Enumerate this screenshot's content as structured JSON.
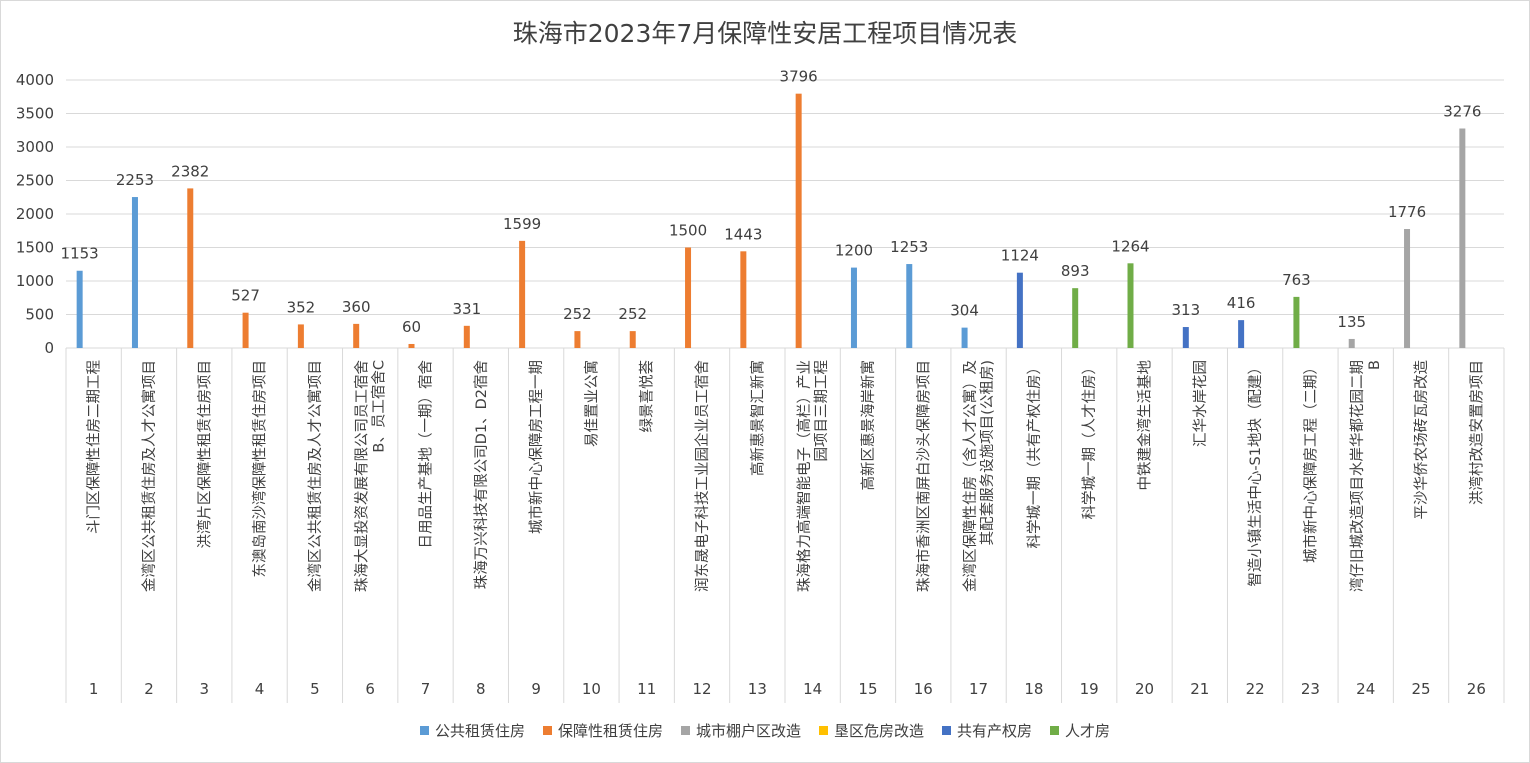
{
  "colors": {
    "public": "#5b9bd5",
    "guarantee": "#ed7d31",
    "shanty": "#a5a5a5",
    "reclaim": "#ffc000",
    "shared": "#4472c4",
    "talent": "#70ad47",
    "grid": "#d9d9d9",
    "text": "#404040"
  },
  "chart_data": {
    "type": "bar",
    "title": "珠海市2023年7月保障性安居工程项目情况表",
    "ylim": [
      0,
      4000
    ],
    "yticks": [
      0,
      500,
      1000,
      1500,
      2000,
      2500,
      3000,
      3500,
      4000
    ],
    "series": [
      {
        "name": "公共租赁住房",
        "color": "public"
      },
      {
        "name": "保障性租赁住房",
        "color": "guarantee"
      },
      {
        "name": "城市棚户区改造",
        "color": "shanty"
      },
      {
        "name": "垦区危房改造",
        "color": "reclaim"
      },
      {
        "name": "共有产权房",
        "color": "shared"
      },
      {
        "name": "人才房",
        "color": "talent"
      }
    ],
    "items": [
      {
        "no": "1",
        "name": [
          "斗门区保障性住房二期工程"
        ],
        "value": 1153,
        "series": 0
      },
      {
        "no": "2",
        "name": [
          "金湾区公共租赁住房及人才公寓项目"
        ],
        "value": 2253,
        "series": 0
      },
      {
        "no": "3",
        "name": [
          "洪湾片区保障性租赁住房项目"
        ],
        "value": 2382,
        "series": 1
      },
      {
        "no": "4",
        "name": [
          "东澳岛南沙湾保障性租赁住房项目"
        ],
        "value": 527,
        "series": 1
      },
      {
        "no": "5",
        "name": [
          "金湾区公共租赁住房及人才公寓项目"
        ],
        "value": 352,
        "series": 1
      },
      {
        "no": "6",
        "name": [
          "珠海大显投资发展有限公司员工宿舍",
          "B、员工宿舍C"
        ],
        "value": 360,
        "series": 1
      },
      {
        "no": "7",
        "name": [
          "日用品生产基地（一期）宿舍"
        ],
        "value": 60,
        "series": 1
      },
      {
        "no": "8",
        "name": [
          "珠海万兴科技有限公司D1、D2宿舍"
        ],
        "value": 331,
        "series": 1
      },
      {
        "no": "9",
        "name": [
          "城市新中心保障房工程一期"
        ],
        "value": 1599,
        "series": 1
      },
      {
        "no": "10",
        "name": [
          "易佳置业公寓"
        ],
        "value": 252,
        "series": 1
      },
      {
        "no": "11",
        "name": [
          "绿景喜悦荟"
        ],
        "value": 252,
        "series": 1
      },
      {
        "no": "12",
        "name": [
          "润东晟电子科技工业园企业员工宿舍"
        ],
        "value": 1500,
        "series": 1
      },
      {
        "no": "13",
        "name": [
          "高新惠景智汇新寓"
        ],
        "value": 1443,
        "series": 1
      },
      {
        "no": "14",
        "name": [
          "珠海格力高端智能电子（高栏）产业",
          "园项目三期工程"
        ],
        "value": 3796,
        "series": 1
      },
      {
        "no": "15",
        "name": [
          "高新区惠景海岸新寓"
        ],
        "value": 1200,
        "series": 0
      },
      {
        "no": "16",
        "name": [
          "珠海市香洲区南屏白沙头保障房项目"
        ],
        "value": 1253,
        "series": 0
      },
      {
        "no": "17",
        "name": [
          "金湾区保障性住房（含人才公寓）及",
          "其配套服务设施项目(公租房)"
        ],
        "value": 304,
        "series": 0
      },
      {
        "no": "18",
        "name": [
          "科学城一期（共有产权住房）"
        ],
        "value": 1124,
        "series": 4
      },
      {
        "no": "19",
        "name": [
          "科学城一期（人才住房）"
        ],
        "value": 893,
        "series": 5
      },
      {
        "no": "20",
        "name": [
          "中铁建金湾生活基地"
        ],
        "value": 1264,
        "series": 5
      },
      {
        "no": "21",
        "name": [
          "汇华水岸花园"
        ],
        "value": 313,
        "series": 4
      },
      {
        "no": "22",
        "name": [
          "智造小镇生活中心-S1地块（配建）"
        ],
        "value": 416,
        "series": 4
      },
      {
        "no": "23",
        "name": [
          "城市新中心保障房工程（二期）"
        ],
        "value": 763,
        "series": 5
      },
      {
        "no": "24",
        "name": [
          "湾仔旧城改造项目水岸华都花园二期",
          "B"
        ],
        "value": 135,
        "series": 2
      },
      {
        "no": "25",
        "name": [
          "平沙华侨农场砖瓦房改造"
        ],
        "value": 1776,
        "series": 2
      },
      {
        "no": "26",
        "name": [
          "洪湾村改造安置房项目"
        ],
        "value": 3276,
        "series": 2
      }
    ]
  }
}
